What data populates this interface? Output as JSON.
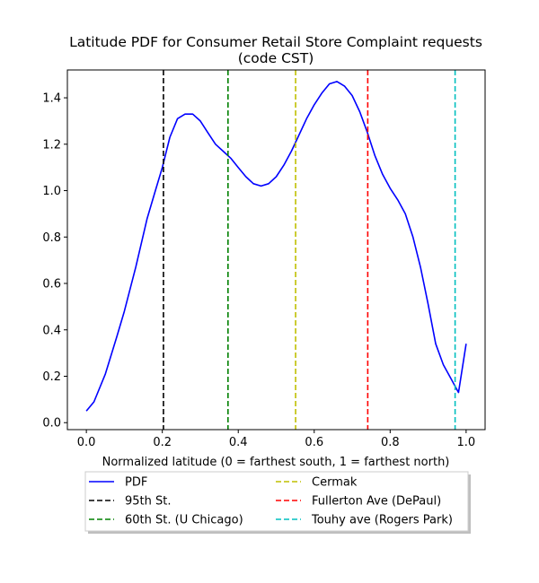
{
  "chart_data": {
    "type": "line",
    "title": "Latitude PDF for Consumer Retail Store Complaint  requests",
    "subtitle": "(code CST)",
    "xlabel": "Normalized latitude (0 = farthest south, 1 = farthest north)",
    "ylabel": "",
    "xlim": [
      -0.05,
      1.05
    ],
    "ylim": [
      -0.03,
      1.52
    ],
    "xticks": [
      "0.0",
      "0.2",
      "0.4",
      "0.6",
      "0.8",
      "1.0"
    ],
    "yticks": [
      "0.0",
      "0.2",
      "0.4",
      "0.6",
      "0.8",
      "1.0",
      "1.2",
      "1.4"
    ],
    "grid": false,
    "legend_position": "below",
    "series": [
      {
        "name": "PDF",
        "color": "#0000ff",
        "x": [
          0.0,
          0.02,
          0.05,
          0.08,
          0.1,
          0.13,
          0.16,
          0.18,
          0.2,
          0.22,
          0.24,
          0.26,
          0.28,
          0.3,
          0.32,
          0.34,
          0.36,
          0.38,
          0.4,
          0.42,
          0.44,
          0.46,
          0.48,
          0.5,
          0.52,
          0.54,
          0.56,
          0.58,
          0.6,
          0.62,
          0.64,
          0.66,
          0.68,
          0.7,
          0.72,
          0.74,
          0.76,
          0.78,
          0.8,
          0.82,
          0.84,
          0.86,
          0.88,
          0.9,
          0.92,
          0.94,
          0.96,
          0.98,
          1.0
        ],
        "y": [
          0.05,
          0.09,
          0.21,
          0.37,
          0.48,
          0.67,
          0.88,
          0.99,
          1.1,
          1.23,
          1.31,
          1.33,
          1.33,
          1.3,
          1.25,
          1.2,
          1.17,
          1.14,
          1.1,
          1.06,
          1.03,
          1.02,
          1.03,
          1.06,
          1.11,
          1.17,
          1.24,
          1.31,
          1.37,
          1.42,
          1.46,
          1.47,
          1.45,
          1.41,
          1.34,
          1.25,
          1.15,
          1.07,
          1.01,
          0.96,
          0.9,
          0.8,
          0.67,
          0.51,
          0.34,
          0.25,
          0.19,
          0.13,
          0.34
        ]
      }
    ],
    "vlines": [
      {
        "name": "95th St.",
        "x": 0.203,
        "color": "#000000"
      },
      {
        "name": "60th St. (U Chicago)",
        "x": 0.373,
        "color": "#008000"
      },
      {
        "name": "Cermak",
        "x": 0.551,
        "color": "#bfbf00"
      },
      {
        "name": "Fullerton Ave (DePaul)",
        "x": 0.741,
        "color": "#ff0000"
      },
      {
        "name": "Touhy ave (Rogers Park)",
        "x": 0.971,
        "color": "#00bfbf"
      }
    ],
    "legend": [
      "PDF",
      "95th St.",
      "60th St. (U Chicago)",
      "Cermak",
      "Fullerton Ave (DePaul)",
      "Touhy ave (Rogers Park)"
    ]
  }
}
